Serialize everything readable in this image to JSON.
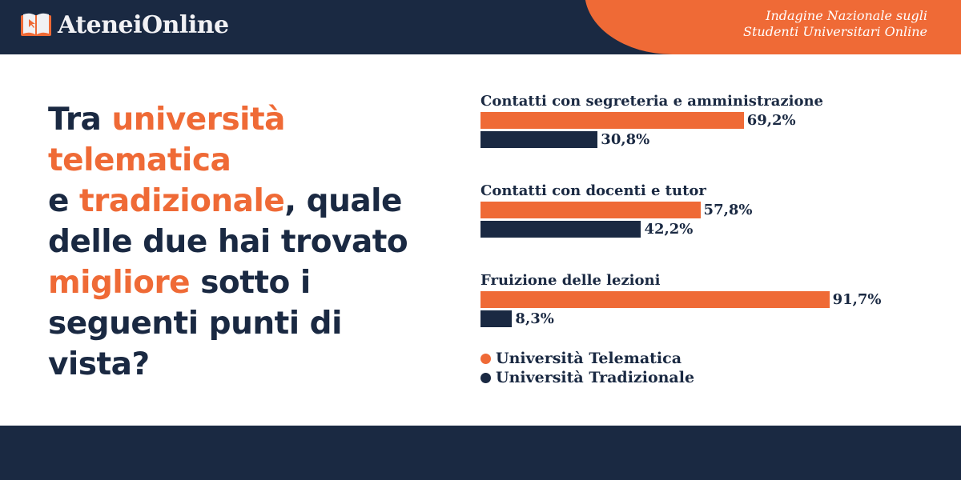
{
  "brand": {
    "name": "AteneiOnline"
  },
  "header": {
    "subtitle_line1": "Indagine Nazionale sugli",
    "subtitle_line2": "Studenti Universitari Online"
  },
  "question": {
    "p1": "Tra ",
    "h1": "università telematica",
    "p2": "e ",
    "h2": "tradizionale",
    "p3": ", quale delle due hai trovato ",
    "h3": "migliore",
    "p4": " sotto i seguenti punti di vista?"
  },
  "colors": {
    "telematica": "#ef6a36",
    "tradizionale": "#1a2942"
  },
  "chart_data": {
    "type": "bar",
    "orientation": "horizontal",
    "categories": [
      "Contatti con segreteria e amministrazione",
      "Contatti con docenti e tutor",
      "Fruizione delle lezioni"
    ],
    "series": [
      {
        "name": "Università Telematica",
        "values": [
          69.2,
          57.8,
          91.7
        ],
        "labels": [
          "69,2%",
          "57,8%",
          "91,7%"
        ]
      },
      {
        "name": "Università Tradizionale",
        "values": [
          30.8,
          42.2,
          8.3
        ],
        "labels": [
          "30,8%",
          "42,2%",
          "8,3%"
        ]
      }
    ],
    "xlim": [
      0,
      100
    ],
    "legend": "bottom-left"
  }
}
